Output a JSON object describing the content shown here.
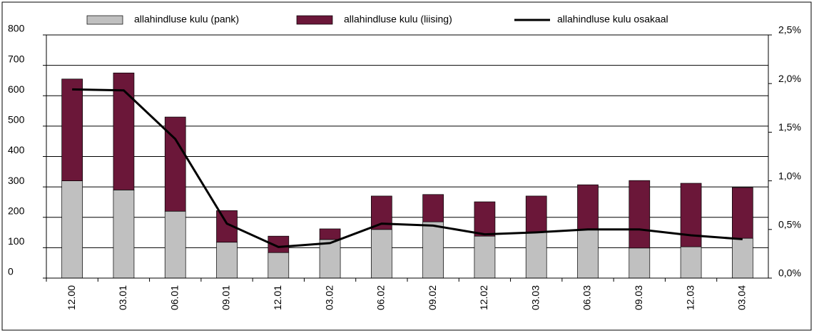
{
  "chart_data": {
    "type": "bar",
    "stacked": true,
    "categories": [
      "12.00",
      "03.01",
      "06.01",
      "09.01",
      "12.01",
      "03.02",
      "06.02",
      "09.02",
      "12.02",
      "03.03",
      "06.03",
      "09.03",
      "12.03",
      "03.04"
    ],
    "series": [
      {
        "name": "allahindluse kulu (pank)",
        "color": "#c0c0c0",
        "values": [
          320,
          290,
          220,
          118,
          84,
          127,
          160,
          185,
          138,
          150,
          160,
          99,
          103,
          131
        ]
      },
      {
        "name": "allahindluse kulu (liising)",
        "color": "#6b1739",
        "values": [
          335,
          385,
          310,
          104,
          54,
          35,
          110,
          90,
          113,
          120,
          147,
          222,
          209,
          167
        ]
      },
      {
        "name": "allahindluse kulu osakaal",
        "color": "#000000",
        "type": "line",
        "axis": "y2",
        "values": [
          1.94,
          1.93,
          1.43,
          0.56,
          0.32,
          0.36,
          0.56,
          0.54,
          0.45,
          0.47,
          0.5,
          0.5,
          0.44,
          0.4
        ]
      }
    ],
    "ylim": [
      0,
      800
    ],
    "yticks": [
      0,
      100,
      200,
      300,
      400,
      500,
      600,
      700,
      800
    ],
    "y2lim": [
      0,
      2.5
    ],
    "y2ticks": [
      {
        "value": 0,
        "label": "0,0%"
      },
      {
        "value": 0.5,
        "label": "0,5%"
      },
      {
        "value": 1,
        "label": "1,0%"
      },
      {
        "value": 1.5,
        "label": "1,5%"
      },
      {
        "value": 2,
        "label": "2,0%"
      },
      {
        "value": 2.5,
        "label": "2,5%"
      }
    ],
    "grid": true
  }
}
